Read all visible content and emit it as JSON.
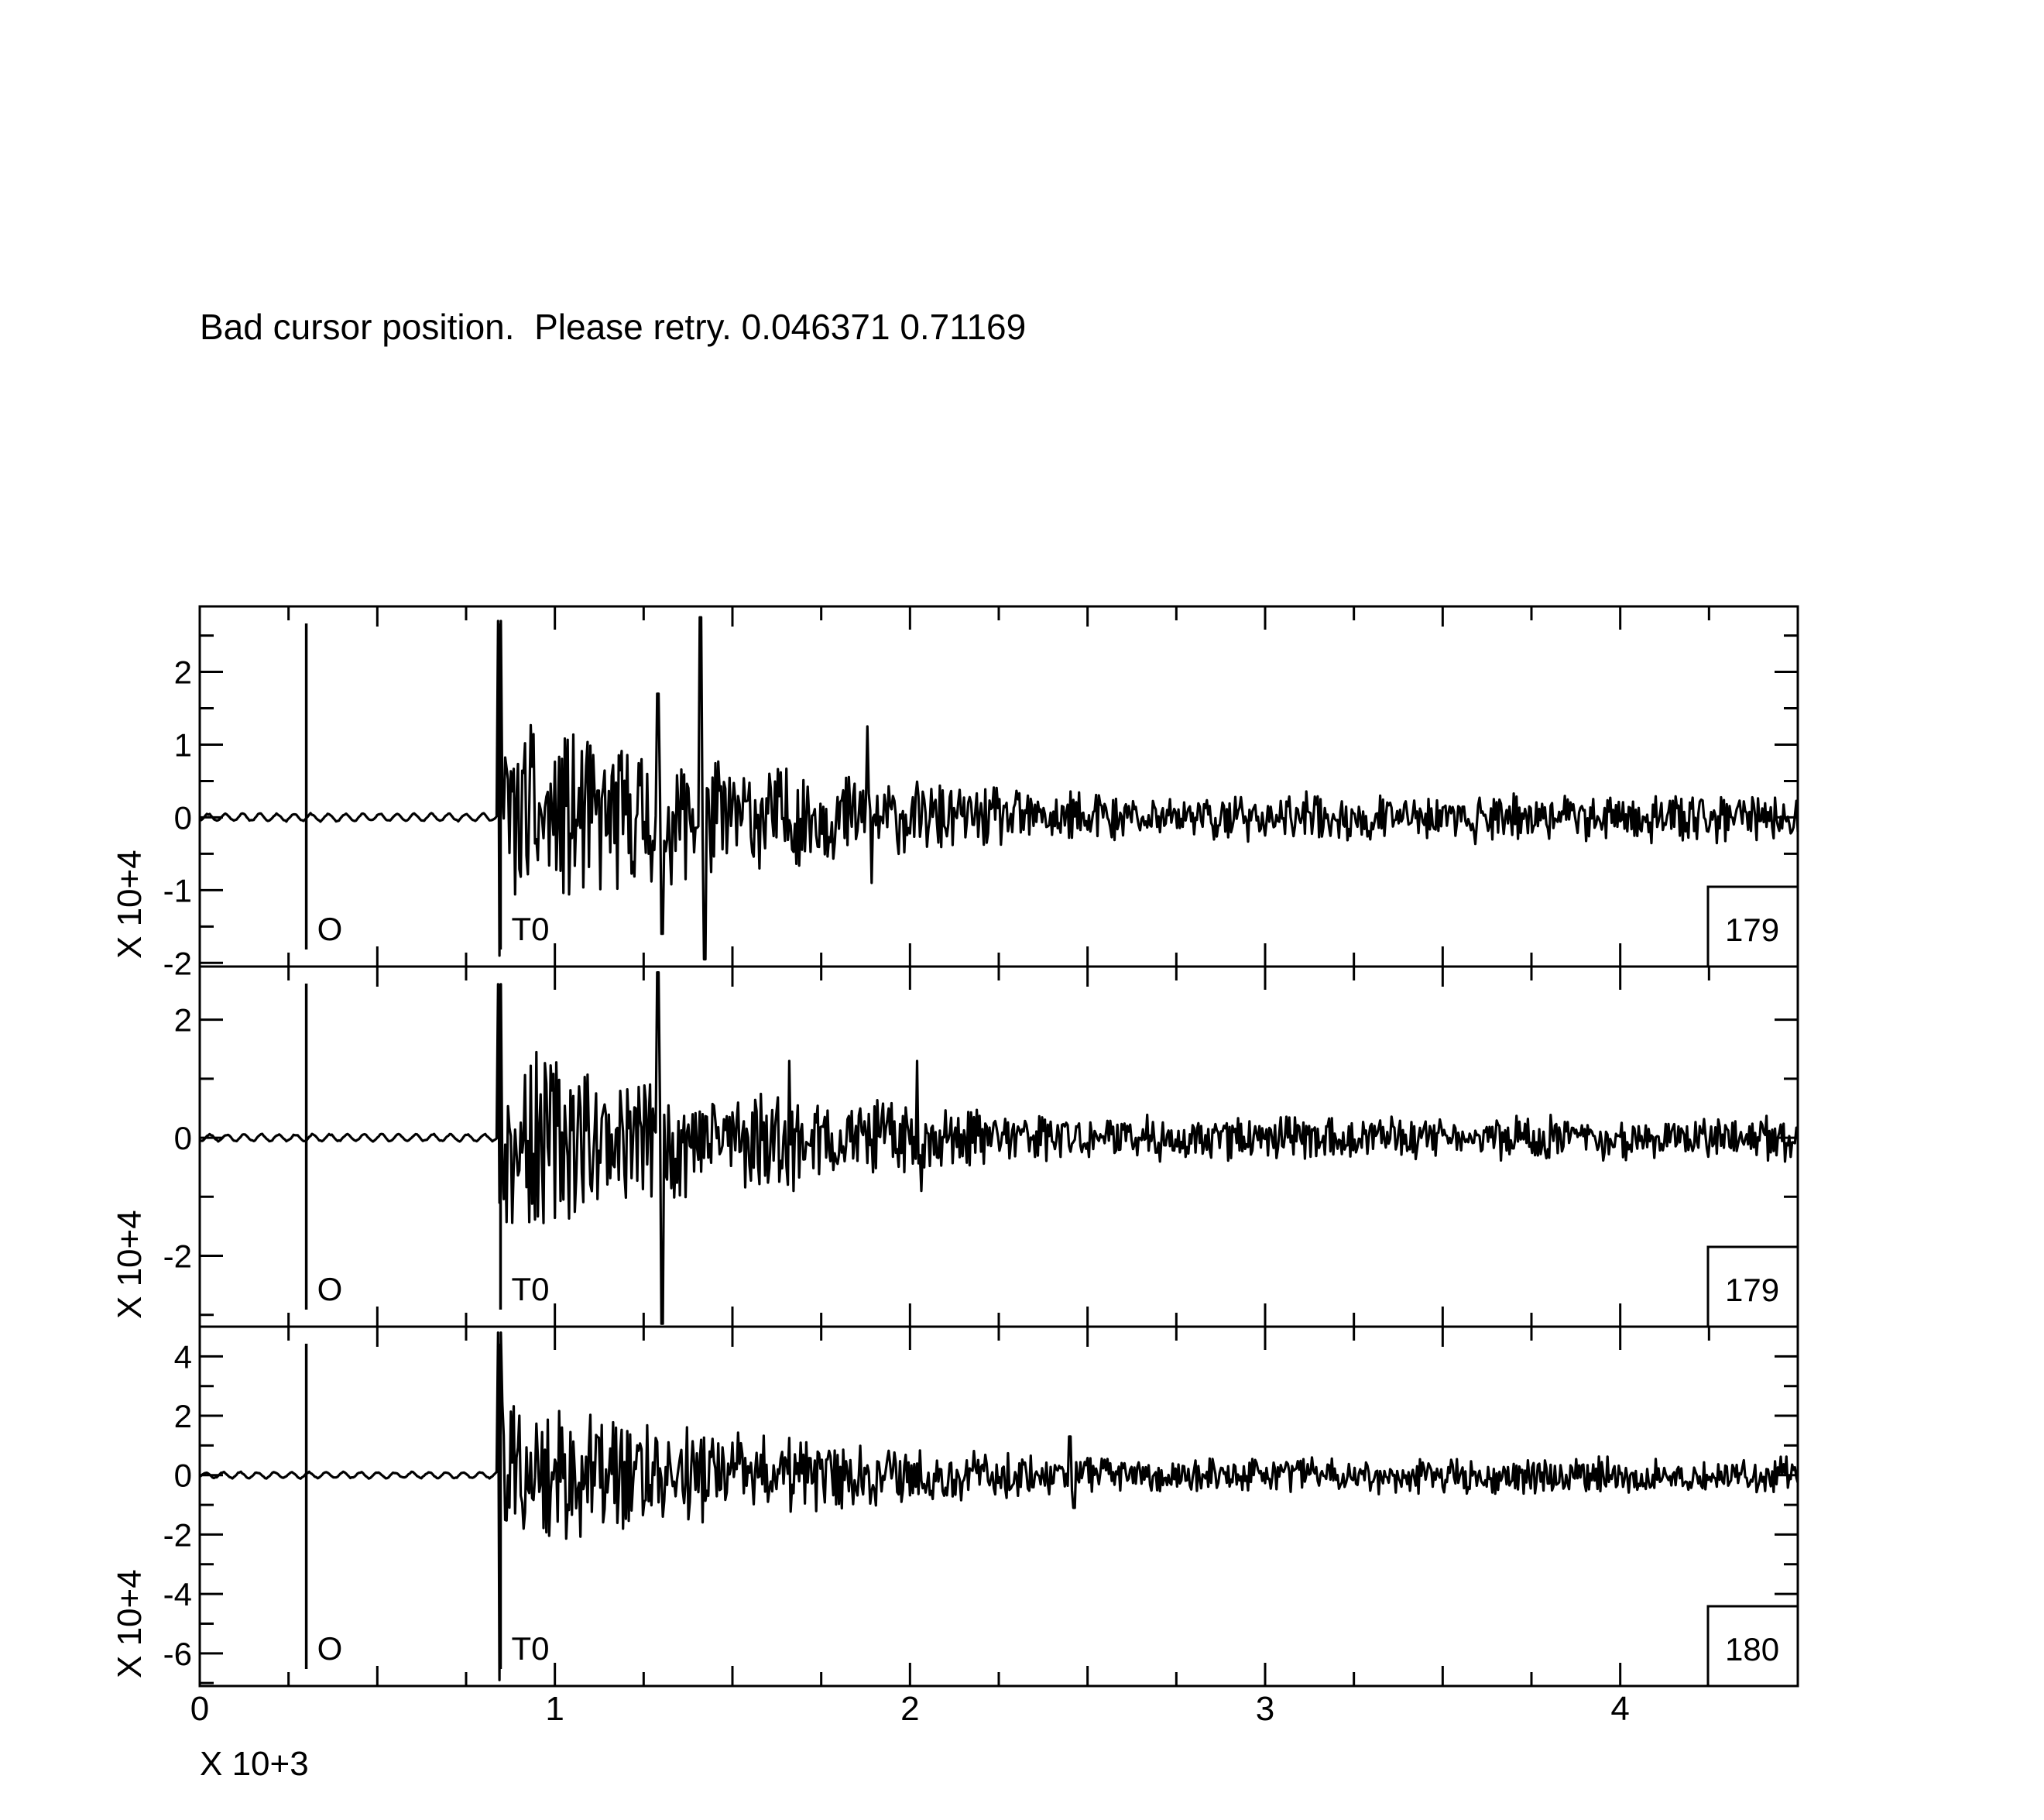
{
  "message": "Bad cursor position.  Please retry. 0.046371 0.71169",
  "chart_data": {
    "type": "line",
    "x_axis": {
      "range": [
        0,
        4.5
      ],
      "ticks": [
        0,
        1,
        2,
        3,
        4
      ],
      "tick_labels": [
        "0",
        "1",
        "2",
        "3",
        "4"
      ],
      "multiplier_label": "X 10+3"
    },
    "panels": [
      {
        "station_label": "179",
        "ylabel": "X 10+4",
        "ylim": [
          -2.05,
          2.9
        ],
        "yticks": [
          2,
          1,
          0,
          -1,
          -2
        ],
        "ytick_labels": [
          "2",
          "1",
          "0",
          "-1",
          "-2"
        ],
        "markers": [
          {
            "label": "O",
            "x": 0.3
          },
          {
            "label": "T0",
            "x": 0.847
          }
        ],
        "trace": {
          "seed": 11,
          "quiet_amp": 0.06,
          "onset_amp": 2.7,
          "onset_min": -1.9,
          "coda_amp": 0.8,
          "decay_x": 2.5,
          "tail_amp": 0.18,
          "bursts": [
            [
              1.29,
              1.7,
              -1.6
            ],
            [
              1.41,
              2.75,
              -1.95
            ],
            [
              1.88,
              1.25,
              -0.9
            ]
          ]
        }
      },
      {
        "station_label": "179",
        "ylabel": "X 10+4",
        "ylim": [
          -3.2,
          2.9
        ],
        "yticks": [
          2,
          0,
          -2
        ],
        "ytick_labels": [
          "2",
          "0",
          "-2"
        ],
        "markers": [
          {
            "label": "O",
            "x": 0.3
          },
          {
            "label": "T0",
            "x": 0.847
          }
        ],
        "trace": {
          "seed": 23,
          "quiet_amp": 0.07,
          "onset_amp": 2.6,
          "onset_min": -1.1,
          "coda_amp": 0.95,
          "decay_x": 2.5,
          "tail_amp": 0.2,
          "bursts": [
            [
              1.29,
              2.8,
              -3.2
            ],
            [
              1.66,
              1.3,
              -0.9
            ],
            [
              2.02,
              1.3,
              -0.9
            ]
          ]
        }
      },
      {
        "station_label": "180",
        "ylabel": "X 10+4",
        "ylim": [
          -7.1,
          5.0
        ],
        "yticks": [
          4,
          2,
          0,
          -2,
          -4,
          -6
        ],
        "ytick_labels": [
          "4",
          "2",
          "0",
          "-2",
          "-4",
          "-6"
        ],
        "markers": [
          {
            "label": "O",
            "x": 0.3
          },
          {
            "label": "T0",
            "x": 0.847
          }
        ],
        "trace": {
          "seed": 37,
          "quiet_amp": 0.12,
          "onset_amp": 4.8,
          "onset_min": -6.9,
          "coda_amp": 1.5,
          "decay_x": 2.5,
          "tail_amp": 0.35,
          "bursts": [
            [
              0.9,
              2.0,
              -1.8
            ],
            [
              2.45,
              1.3,
              -1.1
            ]
          ]
        }
      }
    ]
  }
}
